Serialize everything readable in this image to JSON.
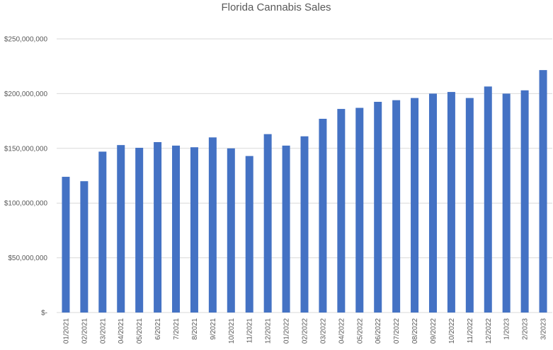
{
  "chart_data": {
    "type": "bar",
    "title": "Florida Cannabis Sales",
    "xlabel": "",
    "ylabel": "",
    "ylim": [
      0,
      250000000
    ],
    "yticks": [
      0,
      50000000,
      100000000,
      150000000,
      200000000,
      250000000
    ],
    "ytick_labels": [
      "$-",
      "$50,000,000",
      "$100,000,000",
      "$150,000,000",
      "$200,000,000",
      "$250,000,000"
    ],
    "grid": true,
    "bar_color": "#4472c4",
    "categories": [
      "01/2021",
      "02/2021",
      "03/2021",
      "04/2021",
      "05/2021",
      "6/2021",
      "7/2021",
      "8/2021",
      "9/2021",
      "10/2021",
      "11/2021",
      "12/2021",
      "01/2022",
      "02/2022",
      "03/2022",
      "04/2022",
      "05/2022",
      "06/2022",
      "07/2022",
      "08/2022",
      "09/2022",
      "10/2022",
      "11/2022",
      "12/2022",
      "1/2023",
      "2/2023",
      "3/2023"
    ],
    "values": [
      124000000,
      120000000,
      147000000,
      153000000,
      150500000,
      155700000,
      152500000,
      151000000,
      160000000,
      150000000,
      143000000,
      163000000,
      152500000,
      161000000,
      177000000,
      186000000,
      187000000,
      192500000,
      194000000,
      196000000,
      200000000,
      201500000,
      196000000,
      206500000,
      200000000,
      203000000,
      221500000
    ]
  }
}
